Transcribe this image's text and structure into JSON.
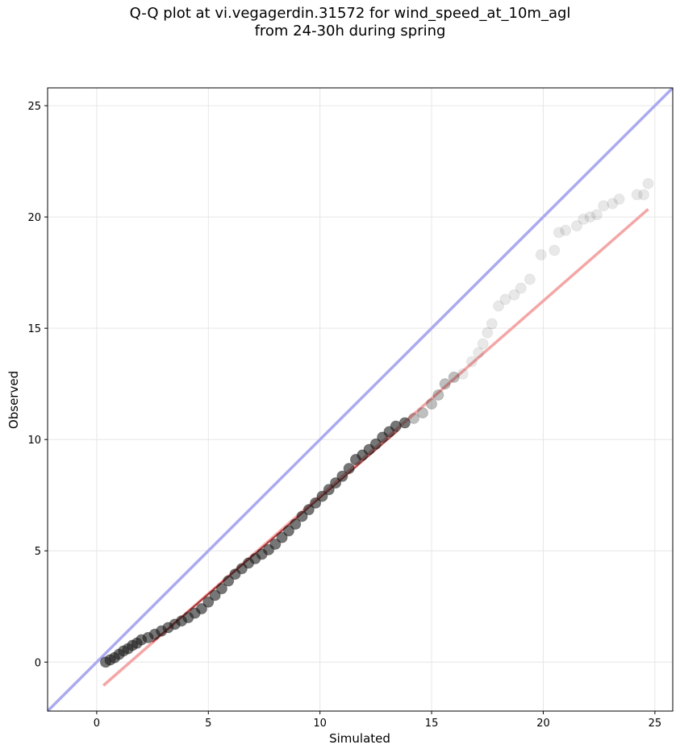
{
  "chart_data": {
    "type": "scatter",
    "title_line1": "Q-Q plot at vi.vegagerdin.31572 for wind_speed_at_10m_agl",
    "title_line2": "from 24-30h during spring",
    "xlabel": "Simulated",
    "ylabel": "Observed",
    "xlim": [
      -2.2,
      25.8
    ],
    "ylim": [
      -2.2,
      25.8
    ],
    "xticks": [
      0,
      5,
      10,
      15,
      20,
      25
    ],
    "yticks": [
      0,
      5,
      10,
      15,
      20,
      25
    ],
    "grid": true,
    "identity_line": {
      "color": "#aaaaf0",
      "from": [
        -2.2,
        -2.2
      ],
      "to": [
        25.8,
        25.8
      ]
    },
    "fit_line": {
      "color": "#f4a6a6",
      "from": [
        0.3,
        -1.05
      ],
      "to": [
        24.7,
        20.35
      ]
    },
    "dense_segment": {
      "color": "#8b0000",
      "from": [
        2.5,
        0.9
      ],
      "to": [
        13.5,
        10.4
      ]
    },
    "marker_color": "#1a1a1a",
    "points": [
      [
        0.4,
        0.0
      ],
      [
        0.6,
        0.1
      ],
      [
        0.8,
        0.2
      ],
      [
        1.0,
        0.35
      ],
      [
        1.2,
        0.5
      ],
      [
        1.4,
        0.6
      ],
      [
        1.6,
        0.75
      ],
      [
        1.8,
        0.85
      ],
      [
        2.0,
        1.0
      ],
      [
        2.3,
        1.1
      ],
      [
        2.6,
        1.25
      ],
      [
        2.9,
        1.4
      ],
      [
        3.2,
        1.55
      ],
      [
        3.5,
        1.7
      ],
      [
        3.8,
        1.85
      ],
      [
        4.1,
        2.0
      ],
      [
        4.4,
        2.2
      ],
      [
        4.7,
        2.4
      ],
      [
        5.0,
        2.7
      ],
      [
        5.3,
        3.0
      ],
      [
        5.6,
        3.3
      ],
      [
        5.9,
        3.65
      ],
      [
        6.2,
        3.95
      ],
      [
        6.5,
        4.2
      ],
      [
        6.8,
        4.45
      ],
      [
        7.1,
        4.65
      ],
      [
        7.4,
        4.85
      ],
      [
        7.7,
        5.05
      ],
      [
        8.0,
        5.3
      ],
      [
        8.3,
        5.6
      ],
      [
        8.6,
        5.9
      ],
      [
        8.9,
        6.2
      ],
      [
        9.2,
        6.55
      ],
      [
        9.5,
        6.85
      ],
      [
        9.8,
        7.15
      ],
      [
        10.1,
        7.45
      ],
      [
        10.4,
        7.75
      ],
      [
        10.7,
        8.05
      ],
      [
        11.0,
        8.35
      ],
      [
        11.3,
        8.7
      ],
      [
        11.6,
        9.1
      ],
      [
        11.9,
        9.3
      ],
      [
        12.2,
        9.55
      ],
      [
        12.5,
        9.8
      ],
      [
        12.8,
        10.1
      ],
      [
        13.1,
        10.35
      ],
      [
        13.4,
        10.6
      ],
      [
        13.8,
        10.75
      ],
      [
        14.2,
        10.95
      ],
      [
        14.6,
        11.2
      ],
      [
        15.0,
        11.6
      ],
      [
        15.3,
        12.0
      ],
      [
        15.6,
        12.5
      ],
      [
        16.0,
        12.8
      ],
      [
        16.4,
        12.95
      ],
      [
        16.8,
        13.5
      ],
      [
        17.1,
        13.9
      ],
      [
        17.3,
        14.3
      ],
      [
        17.5,
        14.8
      ],
      [
        17.7,
        15.2
      ],
      [
        18.0,
        16.0
      ],
      [
        18.3,
        16.3
      ],
      [
        18.7,
        16.5
      ],
      [
        19.0,
        16.8
      ],
      [
        19.4,
        17.2
      ],
      [
        19.9,
        18.3
      ],
      [
        20.5,
        18.5
      ],
      [
        20.7,
        19.3
      ],
      [
        21.0,
        19.4
      ],
      [
        21.5,
        19.6
      ],
      [
        21.8,
        19.9
      ],
      [
        22.1,
        20.0
      ],
      [
        22.4,
        20.1
      ],
      [
        22.7,
        20.5
      ],
      [
        23.1,
        20.6
      ],
      [
        23.4,
        20.8
      ],
      [
        24.2,
        21.0
      ],
      [
        24.5,
        21.0
      ],
      [
        24.7,
        21.5
      ]
    ]
  }
}
